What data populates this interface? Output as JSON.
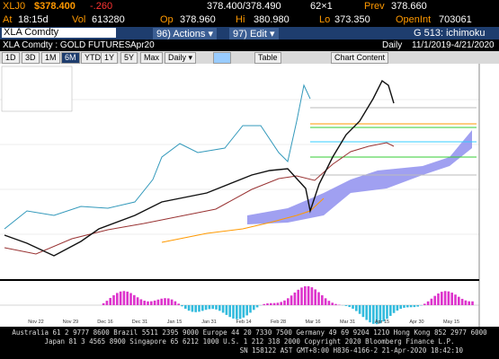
{
  "quote": {
    "ticker": "XLJ0",
    "price": "$378.400",
    "change": "-.260",
    "bid_ask": "378.400/378.490",
    "size": "62×1",
    "prev_label": "Prev",
    "prev": "378.660",
    "time_label": "At",
    "time": "18:15d",
    "vol_label": "Vol",
    "vol": "613280",
    "open_label": "Op",
    "open": "378.960",
    "high_label": "Hi",
    "high": "380.980",
    "low_label": "Lo",
    "low": "373.350",
    "oi_label": "OpenInt",
    "oi": "703061"
  },
  "command": {
    "security": "XLA Comdty",
    "actions": "96) Actions ▾",
    "edit": "97) Edit ▾",
    "template": "G 513: ichimoku"
  },
  "header": {
    "title": "XLA Comdty : GOLD FUTURES",
    "contract": "Apr20",
    "frequency": "Daily",
    "range": "11/1/2019-4/21/2020"
  },
  "toolbar": {
    "periods": [
      "1D",
      "3D",
      "1M",
      "6M",
      "YTD",
      "1Y",
      "5Y",
      "Max"
    ],
    "frequency": "Daily ▾",
    "table": "Table",
    "content": "Chart Content"
  },
  "chart": {
    "x_labels": [
      "Nov 22",
      "Nov 29",
      "Dec 16",
      "Dec 31",
      "Jan 15",
      "Jan 31",
      "Feb 14",
      "Feb 28",
      "Mar 16",
      "Mar 31",
      "Apr 15",
      "Apr 30",
      "May 15"
    ]
  },
  "footer": {
    "line1": "Australia 61 2 9777 8600 Brazil 5511 2395 9000 Europe 44 20 7330 7500 Germany 49 69 9204 1210 Hong Kong 852 2977 6000",
    "line2": "Japan 81 3 4565 8900   Singapore 65 6212 1000   U.S. 1 212 318 2000   Copyright 2020 Bloomberg Finance L.P.",
    "line3": "SN 158122 AST  GMT+8:00 H836-4166-2 21-Apr-2020 18:42:10"
  }
}
